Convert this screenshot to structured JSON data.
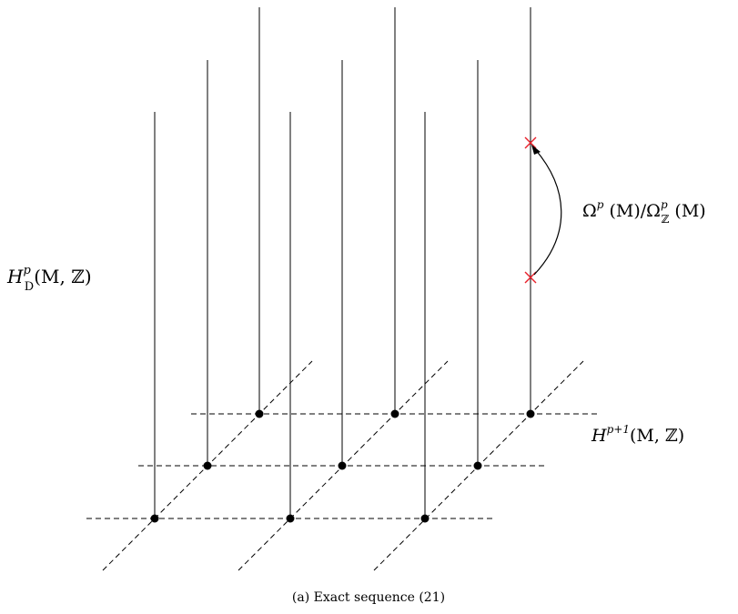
{
  "labels": {
    "left": {
      "main": "H",
      "sup": "p",
      "sub": "D",
      "args": "(M, ℤ)"
    },
    "right_top": {
      "main": "Ω",
      "sup": "p",
      "args1": " (M)/Ω",
      "sup2": "p",
      "sub2": "ℤ",
      "args2": " (M)"
    },
    "right_bottom": {
      "main": "H",
      "sup": "p+1",
      "args": "(M, ℤ)"
    }
  },
  "caption": "(a) Exact sequence (21)",
  "colors": {
    "line": "#000000",
    "marker_cross": "#e8202a"
  }
}
